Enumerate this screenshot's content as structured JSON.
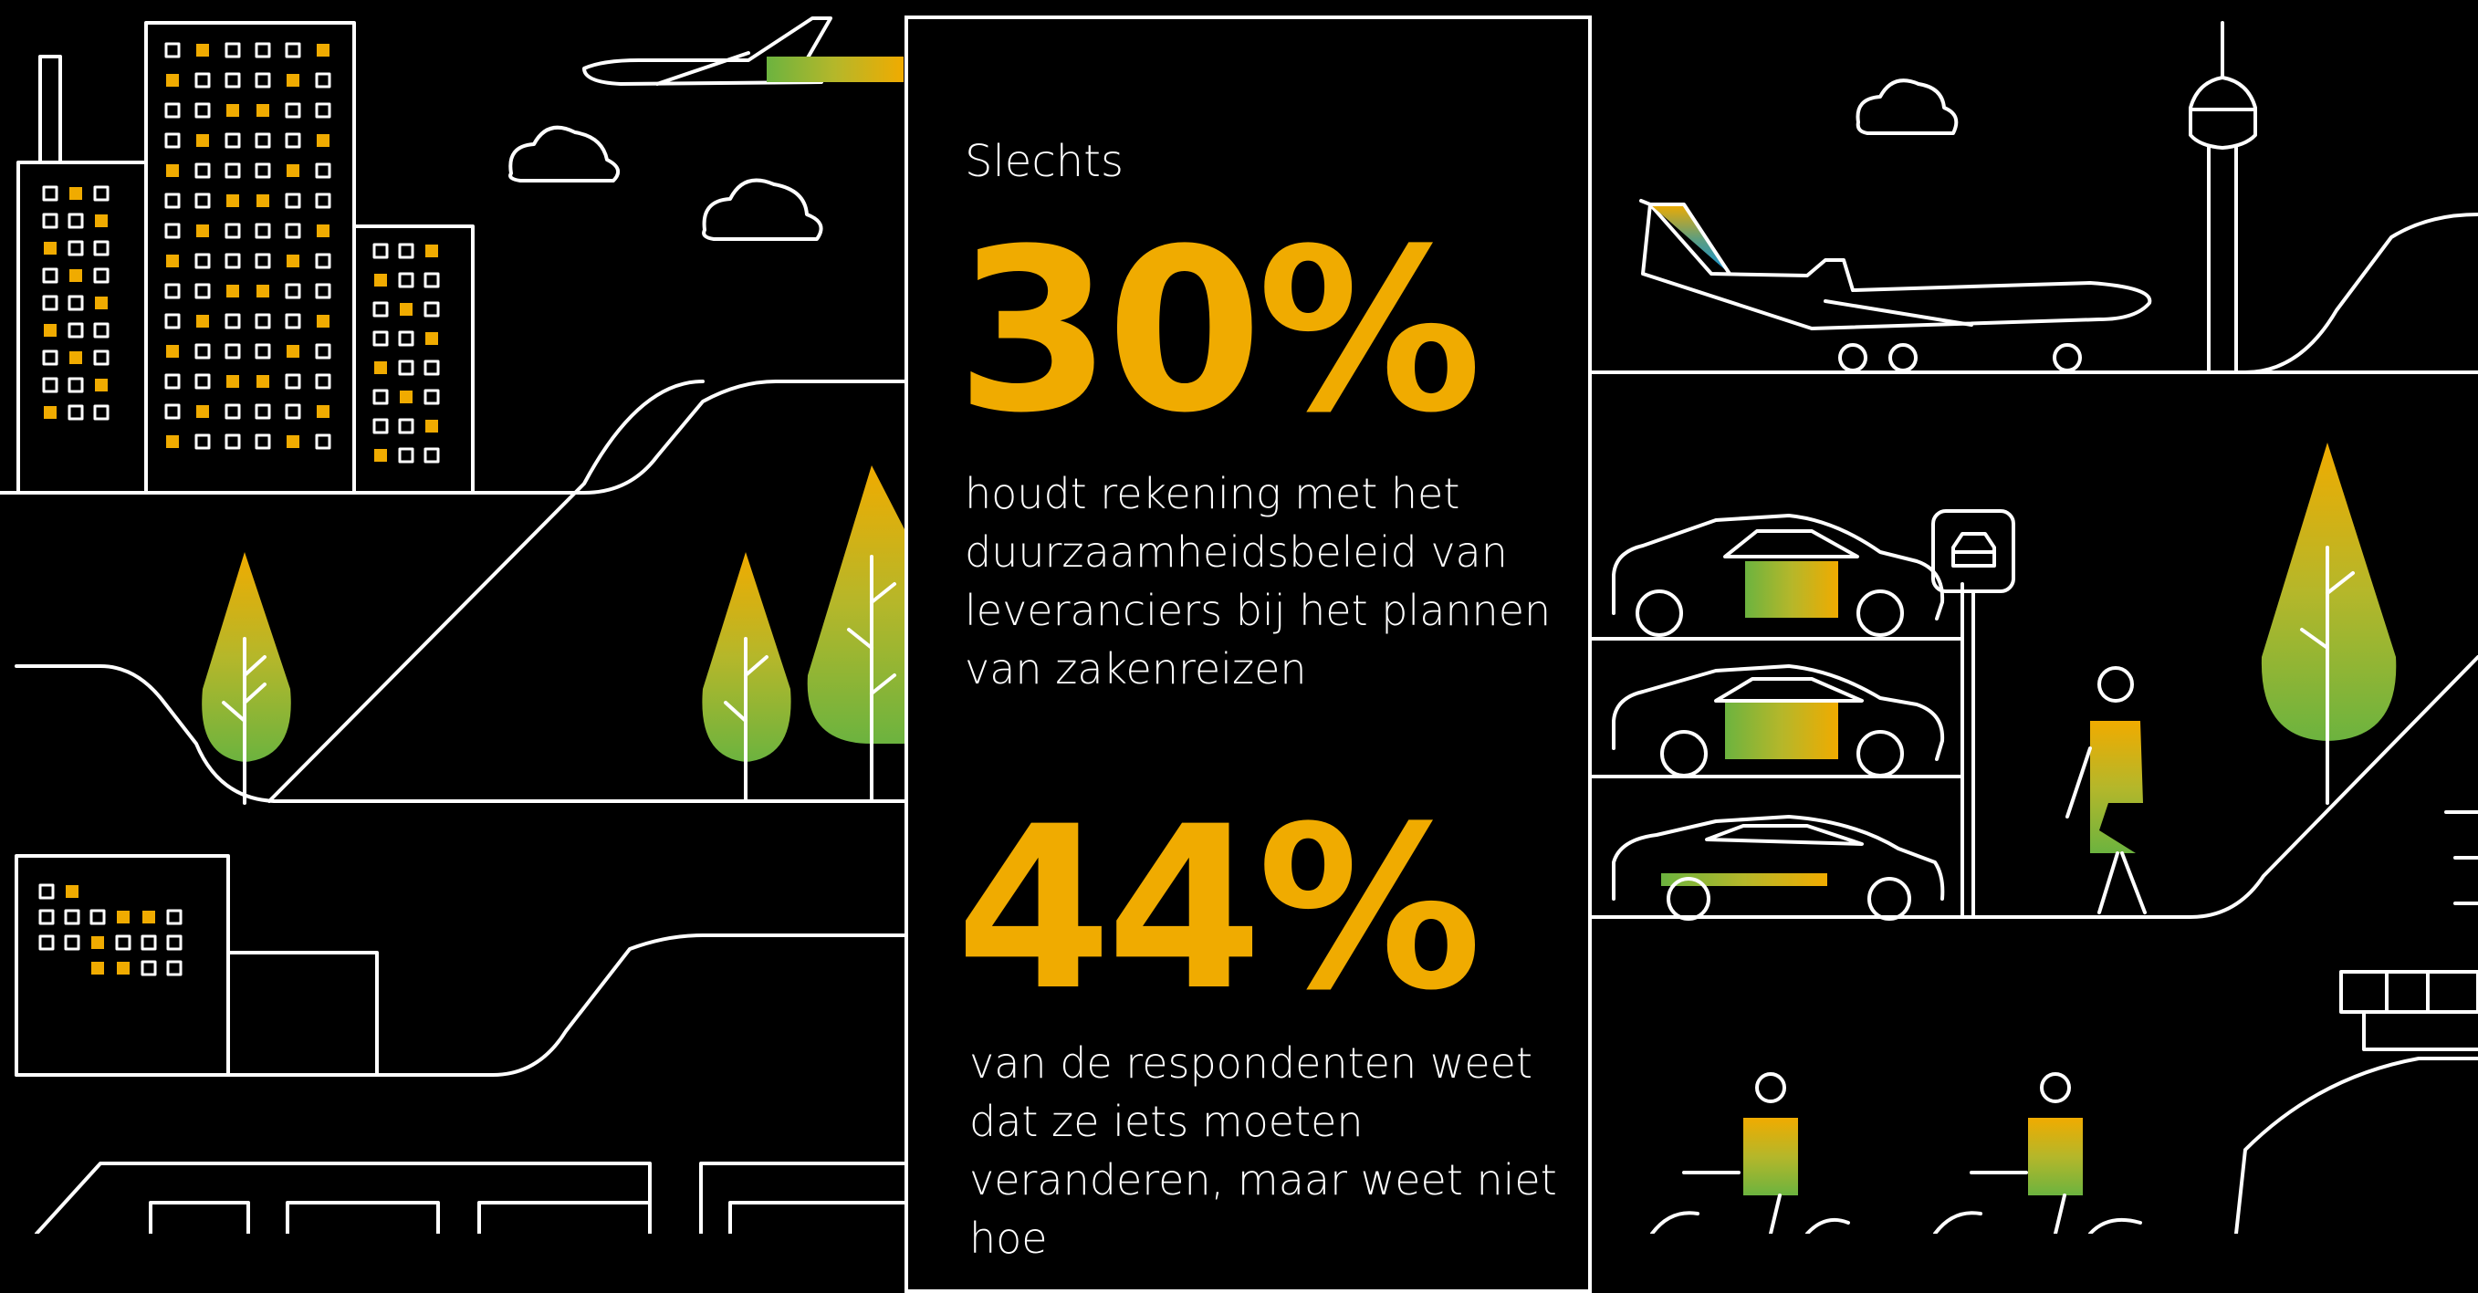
{
  "colors": {
    "background": "#000000",
    "line": "#ffffff",
    "accent": "#f0ab00",
    "palette": [
      "#f0ab00",
      "#b5b72a",
      "#6cb33f",
      "#5e9e7e",
      "#0f8fd6"
    ]
  },
  "stats": [
    {
      "lead": "Slechts",
      "value": "30%",
      "text": "houdt rekening met het\nduurzaamheidsbeleid van\nleveranciers bij het plannen\nvan zakenreizen"
    },
    {
      "value": "44%",
      "text": "van de respondenten weet\ndat ze iets moeten\nveranderen, maar weet niet\nhoe"
    }
  ],
  "icons": [
    "office-building-icon",
    "airplane-icon",
    "cloud-icon",
    "tree-icon",
    "tower-icon",
    "car-icon",
    "parking-sign-icon",
    "pedestrian-icon",
    "cyclist-icon",
    "ship-icon",
    "train-icon"
  ]
}
